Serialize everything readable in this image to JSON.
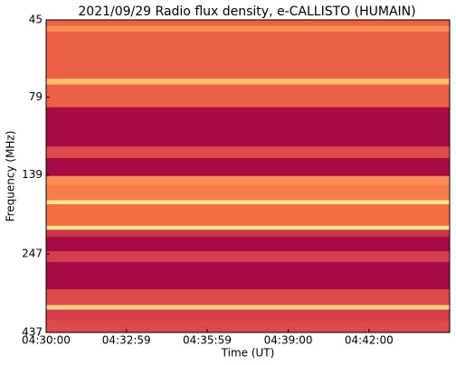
{
  "chart_data": {
    "type": "spectrogram",
    "title": "2021/09/29  Radio flux density, e-CALLISTO (HUMAIN)",
    "x_label": "Time (UT)",
    "y_label": "Frequency (MHz)",
    "xlim": [
      "04:30:00",
      "04:45:00"
    ],
    "xticks": [
      "04:30:00",
      "04:32:59",
      "04:35:59",
      "04:39:00",
      "04:42:00"
    ],
    "ylim": [
      45,
      437
    ],
    "yticks": [
      45,
      79,
      139,
      247,
      437
    ],
    "yscale": "log",
    "y_reversed": true,
    "bands": [
      {
        "range": [
          45,
          47
        ],
        "level": 0.45
      },
      {
        "range": [
          47,
          49
        ],
        "level": 0.6
      },
      {
        "range": [
          49,
          69
        ],
        "level": 0.45
      },
      {
        "range": [
          69,
          72
        ],
        "level": 0.75
      },
      {
        "range": [
          72,
          85
        ],
        "level": 0.45
      },
      {
        "range": [
          85,
          113
        ],
        "level": 0.05
      },
      {
        "range": [
          113,
          123
        ],
        "level": 0.35
      },
      {
        "range": [
          123,
          140
        ],
        "level": 0.05
      },
      {
        "range": [
          140,
          150
        ],
        "level": 0.6
      },
      {
        "range": [
          150,
          167
        ],
        "level": 0.55
      },
      {
        "range": [
          167,
          172
        ],
        "level": 0.9
      },
      {
        "range": [
          172,
          201
        ],
        "level": 0.5
      },
      {
        "range": [
          201,
          207
        ],
        "level": 0.85
      },
      {
        "range": [
          207,
          218
        ],
        "level": 0.25
      },
      {
        "range": [
          218,
          242
        ],
        "level": 0.05
      },
      {
        "range": [
          242,
          262
        ],
        "level": 0.3
      },
      {
        "range": [
          262,
          319
        ],
        "level": 0.05
      },
      {
        "range": [
          319,
          358
        ],
        "level": 0.35
      },
      {
        "range": [
          358,
          370
        ],
        "level": 0.8
      },
      {
        "range": [
          370,
          401
        ],
        "level": 0.3
      },
      {
        "range": [
          401,
          437
        ],
        "level": 0.35
      }
    ]
  }
}
